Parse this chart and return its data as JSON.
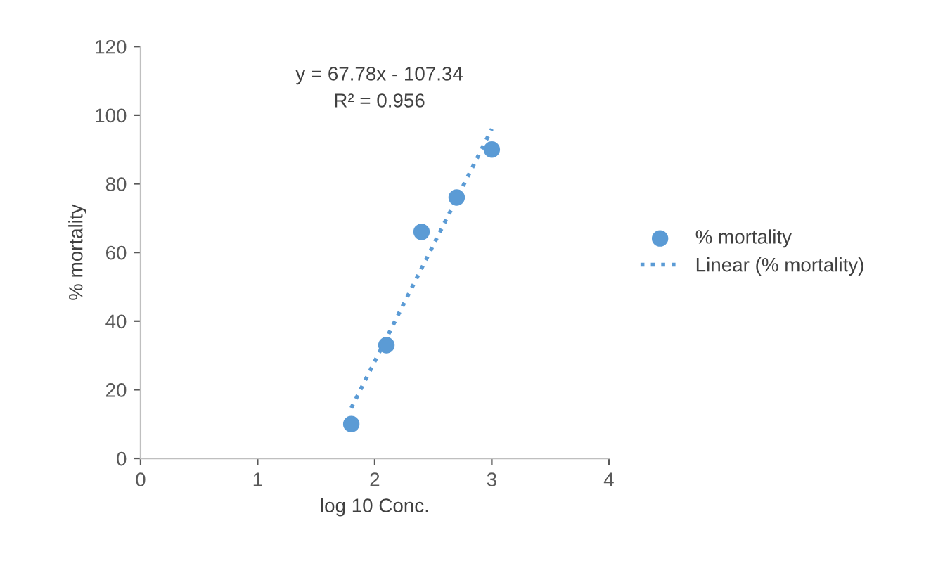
{
  "chart_data": {
    "type": "scatter",
    "xlabel": "log 10 Conc.",
    "ylabel": "% mortality",
    "xlim": [
      0,
      4
    ],
    "xticks": [
      0,
      1,
      2,
      3,
      4
    ],
    "ylim": [
      0,
      120
    ],
    "yticks": [
      0,
      20,
      40,
      60,
      80,
      100,
      120
    ],
    "grid": false,
    "legend": "right",
    "marker": "circle",
    "series": [
      {
        "name": "% mortality",
        "color": "#5b9bd5",
        "x": [
          1.8,
          2.1,
          2.4,
          2.7,
          3.0
        ],
        "values": [
          10,
          33,
          66,
          76,
          90
        ]
      },
      {
        "name": "Linear (% mortality)",
        "type": "line",
        "line_style": "dotted",
        "marker": "none",
        "color": "#5b9bd5",
        "x": [
          1.8,
          3.0
        ],
        "values": [
          14.7,
          96
        ]
      }
    ],
    "annotations": [
      "y = 67.78x - 107.34",
      "R² = 0.956"
    ]
  }
}
